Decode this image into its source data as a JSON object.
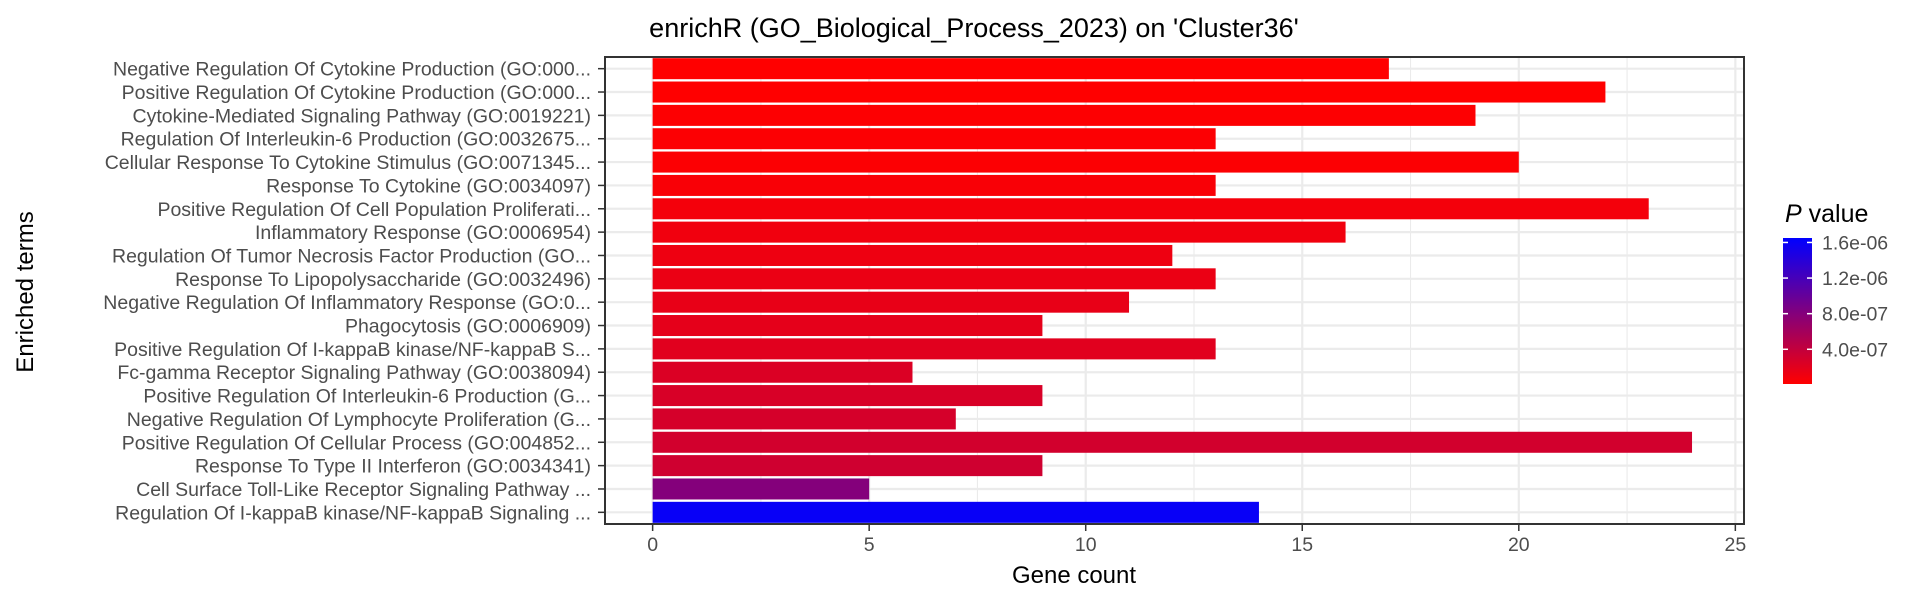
{
  "chart_data": {
    "type": "bar",
    "orientation": "horizontal",
    "title": "enrichR (GO_Biological_Process_2023) on 'Cluster36'",
    "xlabel": "Gene count",
    "ylabel": "Enriched terms",
    "xlim": [
      -1.1,
      25.2
    ],
    "xticks": [
      0,
      5,
      10,
      15,
      20,
      25
    ],
    "grid": true,
    "legend": {
      "title_italic": "P",
      "title_rest": " value",
      "placement": "right",
      "ticks": [
        {
          "value": 1.6e-06,
          "label": "1.6e-06"
        },
        {
          "value": 1.2e-06,
          "label": "1.2e-06"
        },
        {
          "value": 8e-07,
          "label": "8.0e-07"
        },
        {
          "value": 4e-07,
          "label": "4.0e-07"
        }
      ],
      "range": [
        1e-08,
        1.65e-06
      ],
      "low_color": "#FF0000",
      "high_color": "#0000FF"
    },
    "terms": [
      {
        "label": "Negative Regulation Of Cytokine Production (GO:000...",
        "value": 17,
        "p": 1e-08
      },
      {
        "label": "Positive Regulation Of Cytokine Production (GO:000...",
        "value": 22,
        "p": 1e-08
      },
      {
        "label": "Cytokine-Mediated Signaling Pathway (GO:0019221)",
        "value": 19,
        "p": 2e-08
      },
      {
        "label": "Regulation Of Interleukin-6 Production (GO:0032675...",
        "value": 13,
        "p": 3e-08
      },
      {
        "label": "Cellular Response To Cytokine Stimulus (GO:0071345...",
        "value": 20,
        "p": 3e-08
      },
      {
        "label": "Response To Cytokine (GO:0034097)",
        "value": 13,
        "p": 5e-08
      },
      {
        "label": "Positive Regulation Of Cell Population Proliferati...",
        "value": 23,
        "p": 8e-08
      },
      {
        "label": "Inflammatory Response (GO:0006954)",
        "value": 16,
        "p": 1e-07
      },
      {
        "label": "Regulation Of Tumor Necrosis Factor Production (GO...",
        "value": 12,
        "p": 1.2e-07
      },
      {
        "label": "Response To Lipopolysaccharide (GO:0032496)",
        "value": 13,
        "p": 1.4e-07
      },
      {
        "label": "Negative Regulation Of Inflammatory Response (GO:0...",
        "value": 11,
        "p": 1.6e-07
      },
      {
        "label": "Phagocytosis (GO:0006909)",
        "value": 9,
        "p": 1.8e-07
      },
      {
        "label": "Positive Regulation Of I-kappaB kinase/NF-kappaB S...",
        "value": 13,
        "p": 2e-07
      },
      {
        "label": "Fc-gamma Receptor Signaling Pathway (GO:0038094)",
        "value": 6,
        "p": 2.4e-07
      },
      {
        "label": "Positive Regulation Of Interleukin-6 Production (G...",
        "value": 9,
        "p": 2.6e-07
      },
      {
        "label": "Negative Regulation Of Lymphocyte Proliferation (G...",
        "value": 7,
        "p": 2.8e-07
      },
      {
        "label": "Positive Regulation Of Cellular Process (GO:004852...",
        "value": 24,
        "p": 3e-07
      },
      {
        "label": "Response To Type II Interferon (GO:0034341)",
        "value": 9,
        "p": 3.2e-07
      },
      {
        "label": "Cell Surface Toll-Like Receptor Signaling Pathway ...",
        "value": 5,
        "p": 8e-07
      },
      {
        "label": "Regulation Of I-kappaB kinase/NF-kappaB Signaling ...",
        "value": 14,
        "p": 1.6e-06
      }
    ]
  }
}
